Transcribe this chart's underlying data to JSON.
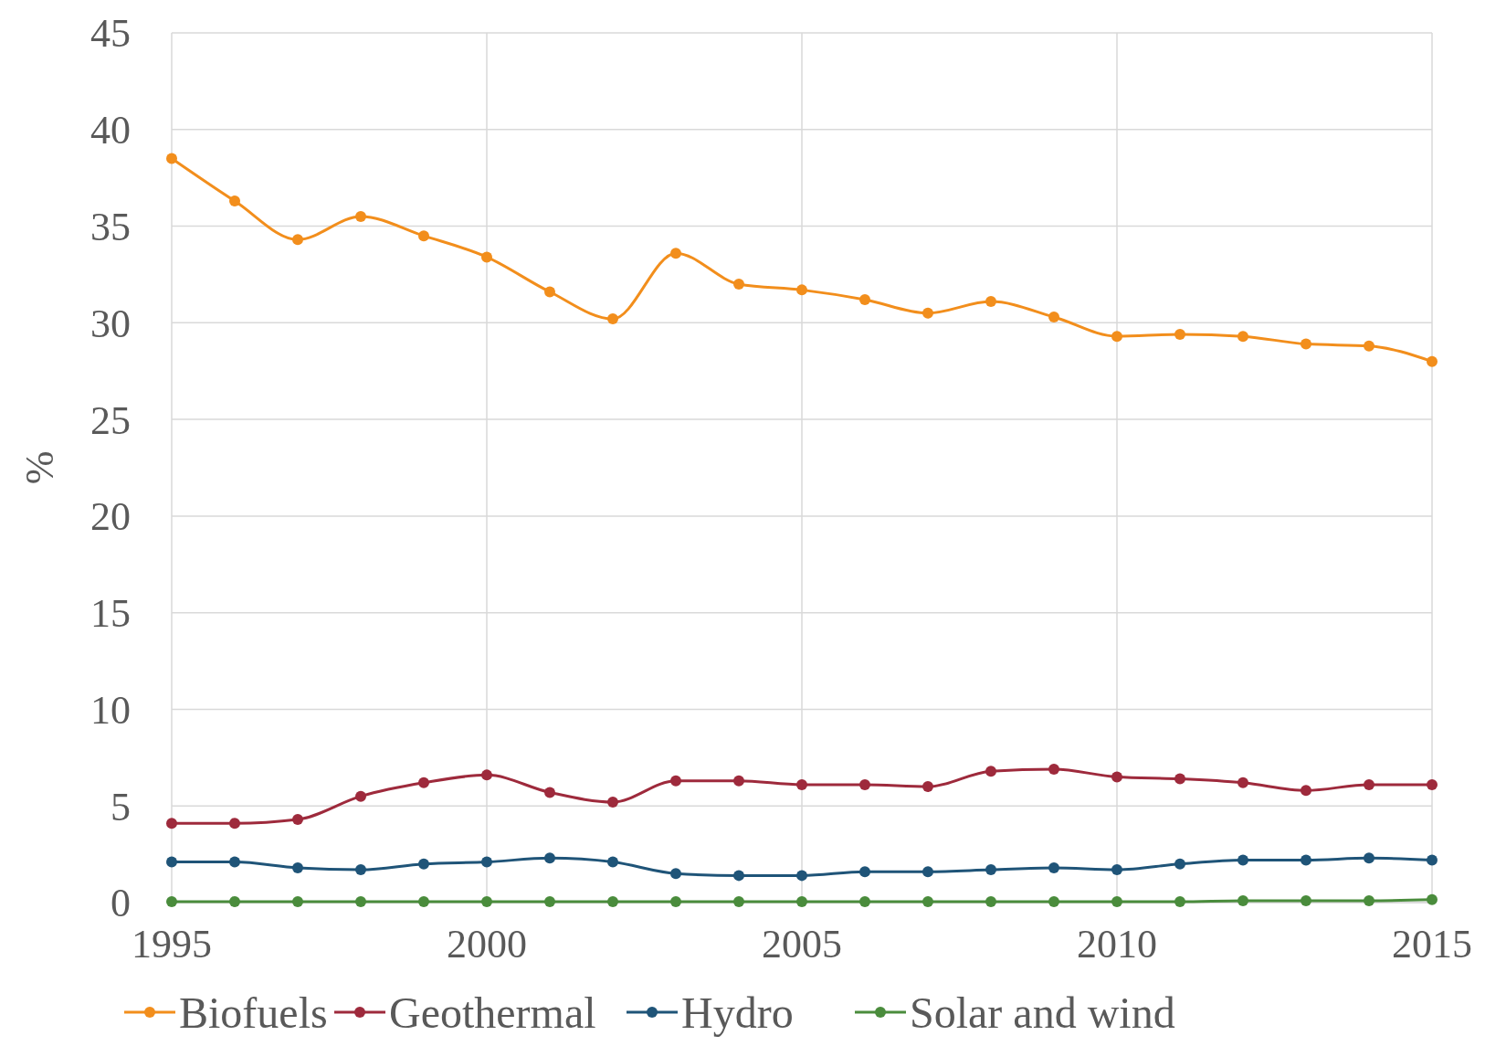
{
  "chart_data": {
    "type": "line",
    "ylabel": "%",
    "x": [
      1995,
      1996,
      1997,
      1998,
      1999,
      2000,
      2001,
      2002,
      2003,
      2004,
      2005,
      2006,
      2007,
      2008,
      2009,
      2010,
      2011,
      2012,
      2013,
      2014,
      2015
    ],
    "xlim": [
      1995,
      2015
    ],
    "xticks": [
      1995,
      2000,
      2005,
      2010,
      2015
    ],
    "ylim": [
      0,
      45
    ],
    "yticks": [
      0,
      5,
      10,
      15,
      20,
      25,
      30,
      35,
      40,
      45
    ],
    "grid": true,
    "legend": "bottom",
    "marker": "circle",
    "line_style": "solid",
    "series": [
      {
        "name": "Biofuels",
        "color": "#f28e1c",
        "values": [
          38.5,
          36.3,
          34.3,
          35.5,
          34.5,
          33.4,
          31.6,
          30.2,
          33.6,
          32.0,
          31.7,
          31.2,
          30.5,
          31.1,
          30.3,
          29.3,
          29.4,
          29.3,
          28.9,
          28.8,
          28.0
        ]
      },
      {
        "name": "Geothermal",
        "color": "#9e2a3c",
        "values": [
          4.1,
          4.1,
          4.3,
          5.5,
          6.2,
          6.6,
          5.7,
          5.2,
          6.3,
          6.3,
          6.1,
          6.1,
          6.0,
          6.8,
          6.9,
          6.5,
          6.4,
          6.2,
          5.8,
          6.1,
          6.1
        ]
      },
      {
        "name": "Hydro",
        "color": "#1f5478",
        "values": [
          2.1,
          2.1,
          1.8,
          1.7,
          2.0,
          2.1,
          2.3,
          2.1,
          1.5,
          1.4,
          1.4,
          1.6,
          1.6,
          1.7,
          1.8,
          1.7,
          2.0,
          2.2,
          2.2,
          2.3,
          2.2
        ]
      },
      {
        "name": "Solar and wind",
        "color": "#4a8c3c",
        "values": [
          0.05,
          0.05,
          0.05,
          0.05,
          0.05,
          0.05,
          0.05,
          0.05,
          0.05,
          0.05,
          0.05,
          0.05,
          0.05,
          0.05,
          0.05,
          0.05,
          0.05,
          0.1,
          0.1,
          0.1,
          0.15
        ]
      }
    ]
  }
}
